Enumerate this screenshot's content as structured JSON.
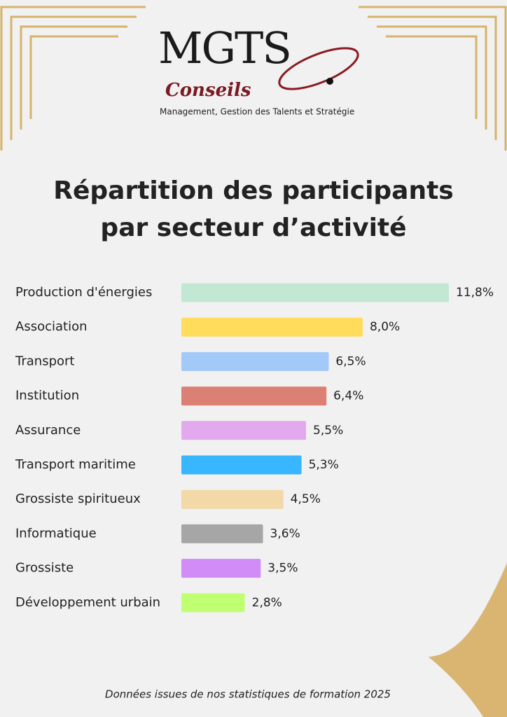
{
  "header": {
    "logo": "MGTS",
    "logo_sub": "Conseils",
    "tagline": "Management, Gestion des Talents et Stratégie"
  },
  "chart_data": {
    "type": "bar",
    "orientation": "horizontal",
    "title": [
      "Répartition des participants",
      "par secteur d’activité"
    ],
    "categories": [
      "Production d'énergies",
      "Association",
      "Transport",
      "Institution",
      "Assurance",
      "Transport maritime",
      "Grossiste spiritueux",
      "Informatique",
      "Grossiste",
      "Développement urbain"
    ],
    "values": [
      11.8,
      8.0,
      6.5,
      6.4,
      5.5,
      5.3,
      4.5,
      3.6,
      3.5,
      2.8
    ],
    "value_labels": [
      "11,8%",
      "8,0%",
      "6,5%",
      "6,4%",
      "5,5%",
      "5,3%",
      "4,5%",
      "3,6%",
      "3,5%",
      "2,8%"
    ],
    "colors": [
      "#c2e8d4",
      "#ffdc5c",
      "#a3c9f9",
      "#dc7f75",
      "#e3a9ee",
      "#38b6ff",
      "#f3d9a8",
      "#a6a6a6",
      "#d18cf7",
      "#c1ff72"
    ]
  },
  "footer": "Données issues de nos statistiques de formation 2025"
}
